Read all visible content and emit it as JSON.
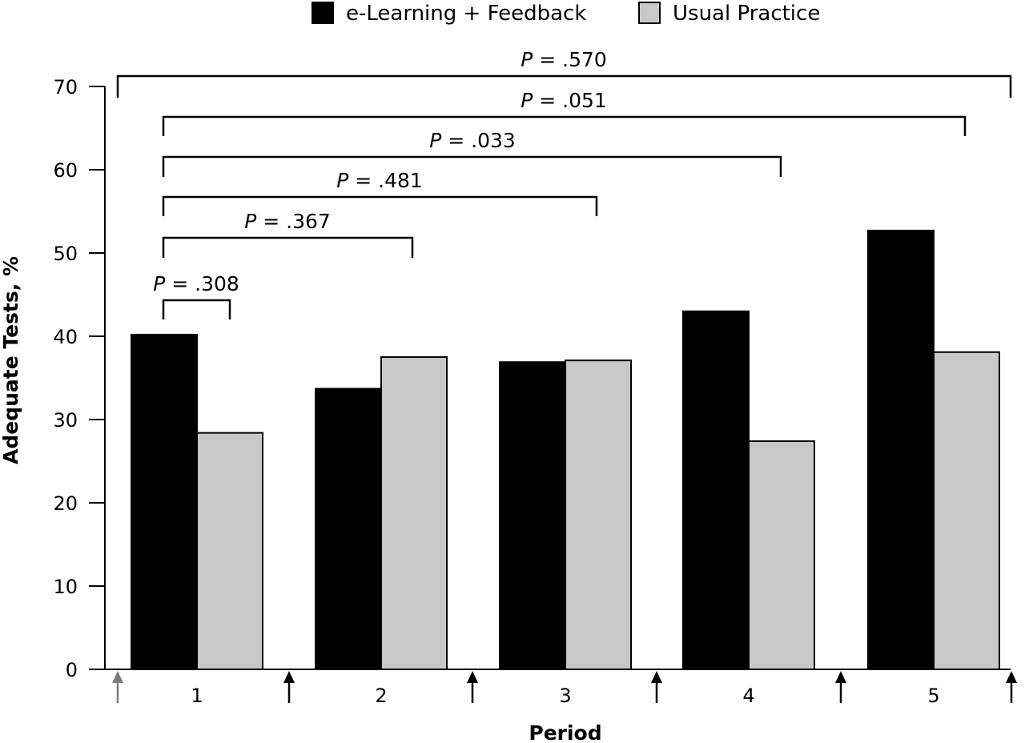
{
  "chart_data": {
    "type": "bar",
    "title": "",
    "xlabel": "Period",
    "ylabel": "Adequate Tests, %",
    "ylim": [
      0,
      70
    ],
    "yticks": [
      0,
      10,
      20,
      30,
      40,
      50,
      60,
      70
    ],
    "grid": false,
    "legend_position": "top-center",
    "categories": [
      "1",
      "2",
      "3",
      "4",
      "5"
    ],
    "series": [
      {
        "name": "e-Learning + Feedback",
        "color": "#000000",
        "values": [
          40.2,
          33.7,
          36.9,
          43.0,
          52.7
        ]
      },
      {
        "name": "Usual Practice",
        "color": "#c8c8c8",
        "values": [
          28.4,
          37.5,
          37.1,
          27.4,
          38.1
        ]
      }
    ],
    "comparisons": [
      {
        "label": "P = .308",
        "p_symbol": "P",
        "p_value": "= .308",
        "from": "1",
        "to": "1"
      },
      {
        "label": "P = .367",
        "p_symbol": "P",
        "p_value": "= .367",
        "from": "1",
        "to": "2"
      },
      {
        "label": "P = .481",
        "p_symbol": "P",
        "p_value": "= .481",
        "from": "1",
        "to": "3"
      },
      {
        "label": "P = .033",
        "p_symbol": "P",
        "p_value": "= .033",
        "from": "1",
        "to": "4"
      },
      {
        "label": "P = .051",
        "p_symbol": "P",
        "p_value": "= .051",
        "from": "1",
        "to": "5"
      },
      {
        "label": "P = .570",
        "p_symbol": "P",
        "p_value": "= .570",
        "from": "0",
        "to": "5"
      }
    ],
    "markers": [
      "period-boundary-arrows"
    ]
  }
}
